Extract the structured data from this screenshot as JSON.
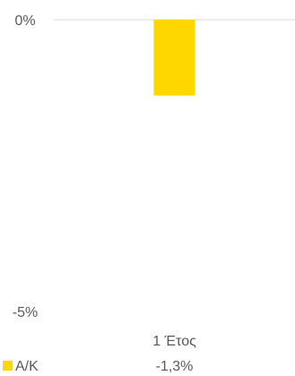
{
  "chart_data": {
    "type": "bar",
    "categories": [
      "1 Έτος"
    ],
    "series": [
      {
        "name": "Α/Κ",
        "values": [
          -1.3
        ],
        "display_values": [
          "-1,3%"
        ],
        "color": "#FFD700"
      }
    ],
    "title": "",
    "xlabel": "",
    "ylabel": "",
    "ylim": [
      -5,
      0
    ],
    "y_tick_labels": [
      "0%",
      "-5%"
    ],
    "gridlines": true,
    "legend": "bottom-left",
    "axis_line_color": "#D9D9D9",
    "text_color": "#595959"
  }
}
